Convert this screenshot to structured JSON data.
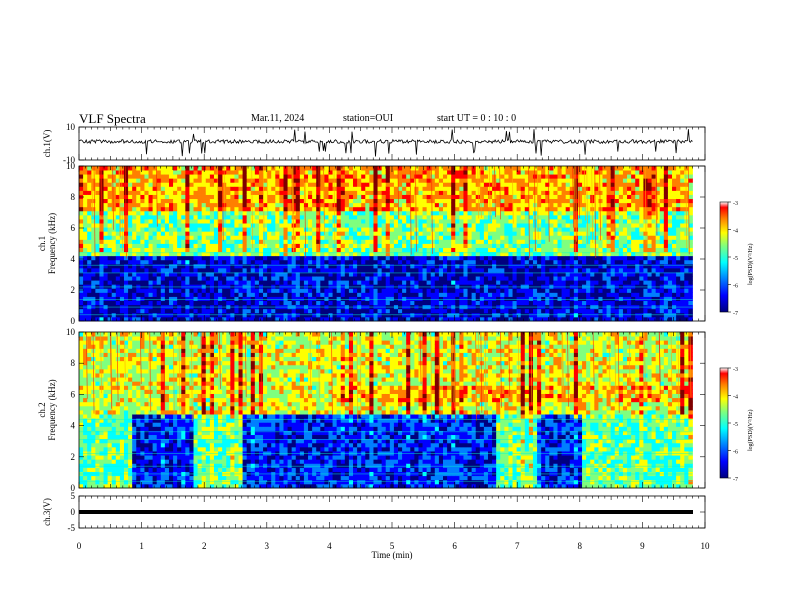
{
  "header": {
    "title": "VLF Spectra",
    "date": "Mar.11, 2024",
    "station": "station=OUI",
    "start_ut": "start  UT =   0 : 10 : 0"
  },
  "colors": {
    "spectrogram_colormap": [
      "#00007f",
      "#0000ff",
      "#007fff",
      "#00ffff",
      "#7fff7f",
      "#ffff00",
      "#ff7f00",
      "#ff0000",
      "#7f0000"
    ],
    "waveform": "#000000",
    "background": "#ffffff"
  },
  "chart_data": [
    {
      "type": "line",
      "name": "ch1-waveform",
      "ylabel": "ch.1(V)",
      "ylim": [
        -10,
        10
      ],
      "yticks": [
        "10",
        "-10"
      ],
      "xlim": [
        0,
        10
      ],
      "series": [
        {
          "description": "noisy waveform near +1 V with occasional negative spikes",
          "baseline": 1.2
        }
      ]
    },
    {
      "type": "heatmap",
      "name": "ch1-spectrogram",
      "ylabel": "ch.1\nFrequency (kHz)",
      "ylim": [
        0,
        10
      ],
      "yticks": [
        "0",
        "2",
        "4",
        "6",
        "8",
        "10"
      ],
      "xlim": [
        0,
        9.8
      ],
      "colorbar": {
        "label": "log(PSD)(V²/Hz)",
        "range": [
          -7,
          -3
        ],
        "ticks": [
          "-3",
          "-4",
          "-5",
          "-6",
          "-7"
        ]
      },
      "bands": [
        {
          "from_khz": 0,
          "to_khz": 4.3,
          "level": -6.5
        },
        {
          "from_khz": 4.3,
          "to_khz": 7,
          "level": -5
        },
        {
          "from_khz": 7,
          "to_khz": 10,
          "level": -4.3
        }
      ]
    },
    {
      "type": "heatmap",
      "name": "ch2-spectrogram",
      "ylabel": "ch.2\nFrequency (kHz)",
      "ylim": [
        0,
        10
      ],
      "yticks": [
        "0",
        "2",
        "4",
        "6",
        "8",
        "10"
      ],
      "xlim": [
        0,
        9.8
      ],
      "colorbar": {
        "label": "log(PSD)(V²/Hz)",
        "range": [
          -7,
          -3
        ],
        "ticks": [
          "-3",
          "-4",
          "-5",
          "-6",
          "-7"
        ]
      },
      "bands": [
        {
          "from_khz": 0,
          "to_khz": 4.8,
          "level": -6.3
        },
        {
          "from_khz": 4.8,
          "to_khz": 10,
          "level": -4.7
        }
      ],
      "quiet_gaps_min": [
        [
          0.8,
          1.8
        ],
        [
          2.6,
          6.6
        ],
        [
          7.3,
          8.0
        ]
      ]
    },
    {
      "type": "line",
      "name": "ch3-waveform",
      "ylabel": "ch.3(V)",
      "ylim": [
        -5,
        5
      ],
      "yticks": [
        "5",
        "0",
        "-5"
      ],
      "xlim": [
        0,
        10
      ],
      "series": [
        {
          "description": "flat line",
          "baseline": 0
        }
      ]
    }
  ],
  "xaxis": {
    "label": "Time (min)",
    "ticks": [
      "0",
      "1",
      "2",
      "3",
      "4",
      "5",
      "6",
      "7",
      "8",
      "9",
      "10"
    ],
    "range": [
      0,
      10
    ]
  }
}
